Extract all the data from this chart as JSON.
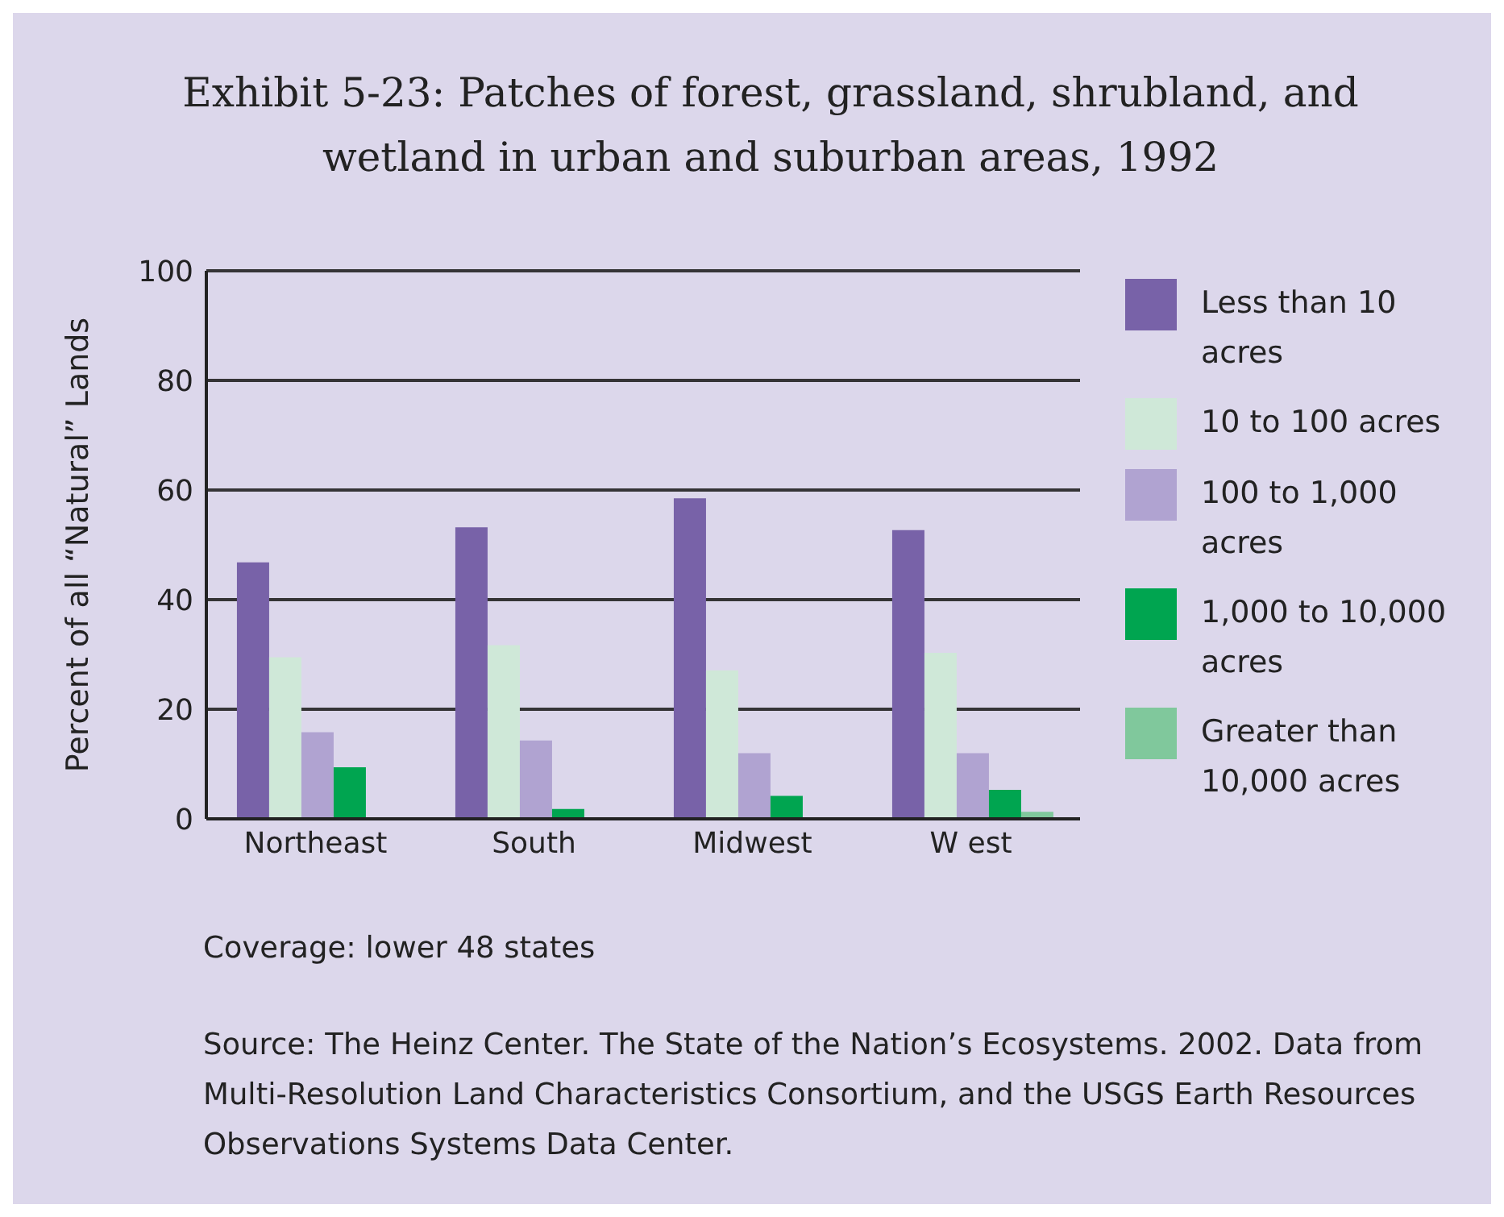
{
  "chart_data": {
    "type": "bar",
    "title": "Exhibit 5-23: Patches of forest, grassland, shrubland, and wetland in urban and suburban areas, 1992",
    "ylabel": "Percent of all “Natural” Lands",
    "categories": [
      "Northeast",
      "South",
      "Midwest",
      "W est"
    ],
    "series": [
      {
        "name": "Less than 10 acres",
        "color": "#7862a8",
        "values": [
          46.8,
          53.2,
          58.5,
          52.7
        ]
      },
      {
        "name": "10 to 100 acres",
        "color": "#cfe8d8",
        "values": [
          29.5,
          31.7,
          27.1,
          30.3
        ]
      },
      {
        "name": "100 to 1,000 acres",
        "color": "#b0a3d1",
        "values": [
          15.8,
          14.3,
          12.0,
          12.0
        ]
      },
      {
        "name": "1,000 to 10,000 acres",
        "color": "#00a550",
        "values": [
          9.4,
          1.8,
          4.2,
          5.3
        ]
      },
      {
        "name": "Greater than 10,000 acres",
        "color": "#80c89c",
        "values": [
          0,
          0,
          0,
          1.3
        ]
      }
    ],
    "ylim": [
      0,
      100
    ],
    "yticks": [
      0,
      20,
      40,
      60,
      80,
      100
    ],
    "grid": "y",
    "legend": "right",
    "annotations": [
      "Coverage: lower 48 states",
      "Source: The Heinz Center. The State of the Nation’s Ecosystems. 2002. Data from Multi-Resolution Land Characteristics Consortium, and the USGS Earth Resources Observations Systems Data Center."
    ]
  }
}
